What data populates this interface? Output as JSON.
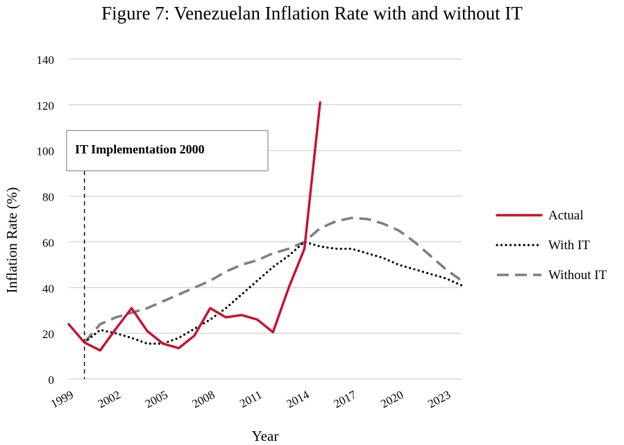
{
  "chart_data": {
    "type": "line",
    "title": "Figure 7: Venezuelan Inflation Rate with and without IT",
    "xlabel": "Year",
    "ylabel": "Inflation Rate (%)",
    "ylim": [
      0,
      140
    ],
    "yticks": [
      0,
      20,
      40,
      60,
      80,
      100,
      120,
      140
    ],
    "xlim": [
      1999,
      2024
    ],
    "xticks": [
      "1999",
      "2002",
      "2005",
      "2008",
      "2011",
      "2014",
      "2017",
      "2020",
      "2023"
    ],
    "grid": true,
    "legend_position": "right",
    "annotation": {
      "text": "IT Implementation 2000",
      "x": 2000
    },
    "series": [
      {
        "name": "Actual",
        "style": "solid",
        "color": "#c8102e",
        "x": [
          1999,
          2000,
          2001,
          2002,
          2003,
          2004,
          2005,
          2006,
          2007,
          2008,
          2009,
          2010,
          2011,
          2012,
          2013,
          2014,
          2015
        ],
        "values": [
          24,
          16,
          12.5,
          22,
          31,
          21,
          15.5,
          13.5,
          19,
          31,
          27,
          28,
          26,
          20.5,
          40,
          57,
          121
        ]
      },
      {
        "name": "With IT",
        "style": "dotted",
        "color": "#000000",
        "x": [
          2000,
          2001,
          2002,
          2003,
          2004,
          2005,
          2006,
          2007,
          2008,
          2009,
          2010,
          2011,
          2012,
          2013,
          2014,
          2015,
          2016,
          2017,
          2018,
          2019,
          2020,
          2021,
          2022,
          2023,
          2024
        ],
        "values": [
          16,
          21.5,
          20,
          18,
          15.5,
          15.5,
          18,
          22,
          26,
          31,
          37,
          43,
          49,
          54,
          60,
          58,
          57,
          57,
          55,
          53,
          50,
          48,
          46,
          44,
          41
        ]
      },
      {
        "name": "Without IT",
        "style": "dashed",
        "color": "#7f7f7f",
        "x": [
          2000,
          2001,
          2002,
          2003,
          2004,
          2005,
          2006,
          2007,
          2008,
          2009,
          2010,
          2011,
          2012,
          2013,
          2014,
          2015,
          2016,
          2017,
          2018,
          2019,
          2020,
          2021,
          2022,
          2023,
          2024
        ],
        "values": [
          16,
          24,
          27,
          29,
          31,
          34,
          37,
          40,
          43,
          47,
          50,
          52,
          55,
          57,
          60,
          66,
          69,
          70.5,
          70,
          68,
          65,
          60,
          54,
          48,
          43
        ]
      }
    ]
  }
}
